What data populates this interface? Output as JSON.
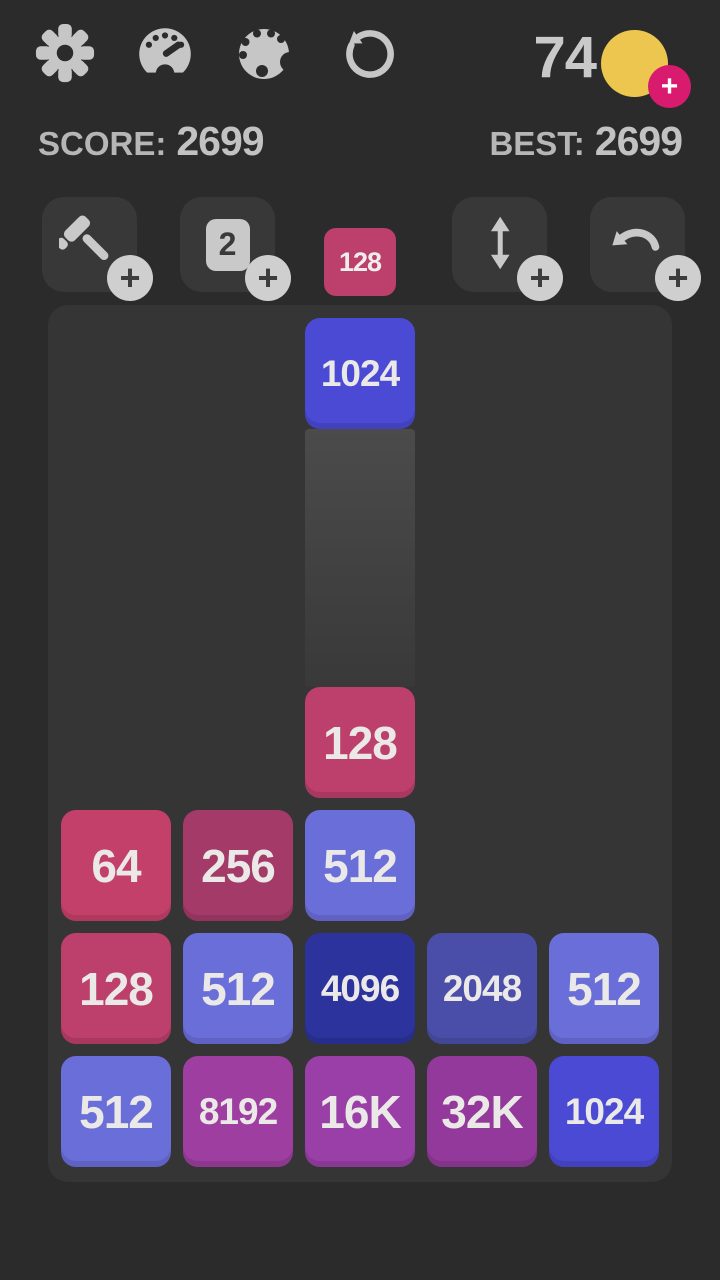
{
  "topbar": {
    "icons": [
      {
        "name": "gear-icon"
      },
      {
        "name": "speedometer-icon"
      },
      {
        "name": "palette-icon"
      },
      {
        "name": "restart-icon"
      }
    ],
    "coin_count": "74",
    "coin_color": "#ecc64f",
    "coin_add_color": "#d81b6e",
    "coin_add_glyph": "+"
  },
  "score_row": {
    "score_label": "SCORE:",
    "score_value": "2699",
    "best_label": "BEST:",
    "best_value": "2699"
  },
  "powerups": {
    "hammer": {
      "icon": "hammer-icon",
      "plus": "+"
    },
    "small_tile": {
      "label": "2",
      "plus": "+"
    },
    "swap": {
      "icon": "up-down-arrows-icon",
      "plus": "+"
    },
    "undo": {
      "icon": "undo-arrow-icon",
      "plus": "+"
    }
  },
  "next_tile": {
    "value": "128",
    "color": "#bd3f6b"
  },
  "board": {
    "cols": 5,
    "rows": 7,
    "tiles": [
      {
        "row": 0,
        "col": 2,
        "value": "1024"
      },
      {
        "row": 3,
        "col": 2,
        "value": "128"
      },
      {
        "row": 4,
        "col": 0,
        "value": "64"
      },
      {
        "row": 4,
        "col": 1,
        "value": "256"
      },
      {
        "row": 4,
        "col": 2,
        "value": "512"
      },
      {
        "row": 5,
        "col": 0,
        "value": "128"
      },
      {
        "row": 5,
        "col": 1,
        "value": "512"
      },
      {
        "row": 5,
        "col": 2,
        "value": "4096"
      },
      {
        "row": 5,
        "col": 3,
        "value": "2048"
      },
      {
        "row": 5,
        "col": 4,
        "value": "512"
      },
      {
        "row": 6,
        "col": 0,
        "value": "512"
      },
      {
        "row": 6,
        "col": 1,
        "value": "8192"
      },
      {
        "row": 6,
        "col": 2,
        "value": "16K"
      },
      {
        "row": 6,
        "col": 3,
        "value": "32K"
      },
      {
        "row": 6,
        "col": 4,
        "value": "1024"
      }
    ],
    "trail_column": 2
  },
  "tile_colors": {
    "64": "#c3406a",
    "128": "#bd3f6b",
    "256": "#a33a68",
    "512": "#6a6ed9",
    "1024": "#4a4ad4",
    "2048": "#4a4ea8",
    "4096": "#2c339d",
    "8192": "#9d3ea0",
    "16K": "#9a3fa7",
    "32K": "#93399b"
  },
  "tile_text_color": "#ebe9e7"
}
